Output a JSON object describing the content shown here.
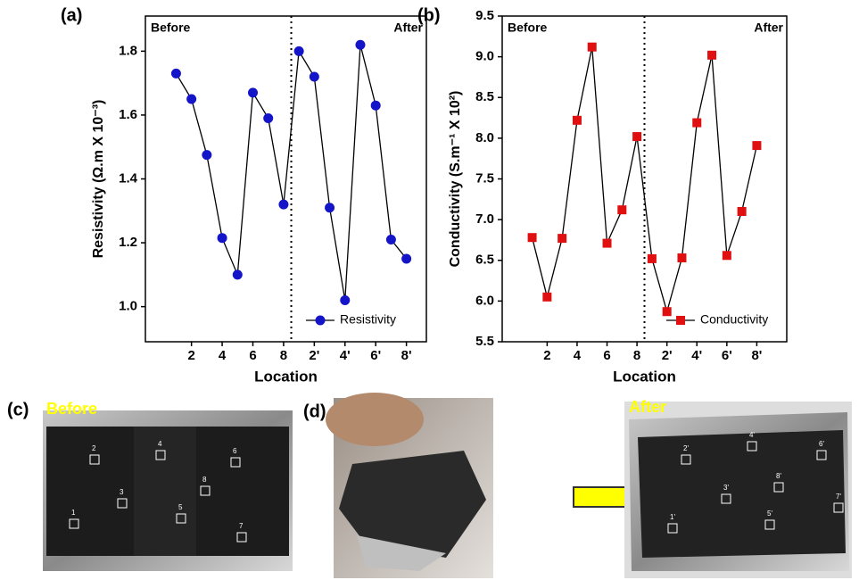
{
  "chart_data": [
    {
      "type": "line",
      "panel_label": "(a)",
      "x": [
        1,
        2,
        3,
        4,
        5,
        6,
        7,
        8,
        9,
        10,
        11,
        12,
        13,
        14,
        15,
        16
      ],
      "series": [
        {
          "name": "Resistivity",
          "color": "#1414c8",
          "marker": "circle",
          "values": [
            1.73,
            1.65,
            1.475,
            1.215,
            1.1,
            1.67,
            1.59,
            1.32,
            1.8,
            1.72,
            1.31,
            1.02,
            1.82,
            1.63,
            1.21,
            1.15
          ]
        }
      ],
      "xlabel": "Location",
      "ylabel": "Resistivity (Ω.m X 10⁻³)",
      "xlim": [
        -1,
        17.3
      ],
      "ylim": [
        0.89,
        1.91
      ],
      "xticks": [
        2,
        4,
        6,
        8,
        {
          "value": 10,
          "label": "2'"
        },
        {
          "value": 12,
          "label": "4'"
        },
        {
          "value": 14,
          "label": "6'"
        },
        {
          "value": 16,
          "label": "8'"
        }
      ],
      "yticks": [
        {
          "value": 1,
          "label": "1.0"
        },
        1.2,
        1.4,
        1.6,
        1.8
      ],
      "annotations": [
        "Before",
        "After"
      ],
      "divider_x": 8.5,
      "legend": "lower right"
    },
    {
      "type": "line",
      "panel_label": "(b)",
      "x": [
        1,
        2,
        3,
        4,
        5,
        6,
        7,
        8,
        9,
        10,
        11,
        12,
        13,
        14,
        15,
        16
      ],
      "series": [
        {
          "name": "Conductivity",
          "color": "#e01010",
          "marker": "square",
          "values": [
            6.78,
            6.05,
            6.77,
            8.22,
            9.12,
            6.71,
            7.12,
            8.02,
            6.52,
            5.87,
            6.53,
            8.19,
            9.02,
            6.56,
            7.1,
            7.91
          ]
        }
      ],
      "xlabel": "Location",
      "ylabel": "Conductivity (S.m⁻¹ X 10²)",
      "xlim": [
        -1,
        18
      ],
      "ylim": [
        5.5,
        9.5
      ],
      "xticks": [
        2,
        4,
        6,
        8,
        {
          "value": 10,
          "label": "2'"
        },
        {
          "value": 12,
          "label": "4'"
        },
        {
          "value": 14,
          "label": "6'"
        },
        {
          "value": 16,
          "label": "8'"
        }
      ],
      "yticks": [
        5.5,
        {
          "value": 6,
          "label": "6.0"
        },
        6.5,
        {
          "value": 7,
          "label": "7.0"
        },
        7.5,
        {
          "value": 8,
          "label": "8.0"
        },
        8.5,
        {
          "value": 9,
          "label": "9.0"
        },
        9.5
      ],
      "annotations": [
        "Before",
        "After"
      ],
      "divider_x": 8.5,
      "legend": "lower right"
    }
  ],
  "photos": {
    "panel_labels": [
      "(c)",
      "(d)"
    ],
    "before": {
      "title": "Before",
      "markers": [
        "1",
        "2",
        "3",
        "4",
        "5",
        "6",
        "7",
        "8"
      ]
    },
    "after": {
      "title": "After",
      "markers": [
        "1'",
        "2'",
        "3'",
        "4'",
        "5'",
        "6'",
        "7'",
        "8'"
      ]
    }
  }
}
